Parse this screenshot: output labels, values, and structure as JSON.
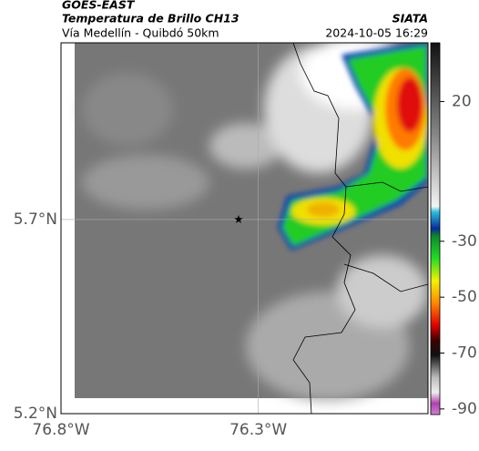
{
  "header": {
    "satellite": "GOES-EAST",
    "product": "Temperatura de Brillo CH13",
    "subtitle": "Vía Medellín - Quibdó 50km",
    "source": "SIATA",
    "datetime": "2024-10-05 16:29"
  },
  "map": {
    "xlim": [
      -76.8,
      -75.87
    ],
    "ylim": [
      5.2,
      6.155
    ],
    "xticks": [
      {
        "value": -76.8,
        "label": "76.8°W"
      },
      {
        "value": -76.3,
        "label": "76.3°W"
      }
    ],
    "yticks": [
      {
        "value": 5.2,
        "label": "5.2°N"
      },
      {
        "value": 5.7,
        "label": "5.7°N"
      }
    ],
    "marker": {
      "lon": -76.35,
      "lat": 5.7
    }
  },
  "colorbar": {
    "lim": [
      -92,
      41
    ],
    "ticks": [
      20,
      -30,
      -50,
      -70,
      -90
    ]
  }
}
